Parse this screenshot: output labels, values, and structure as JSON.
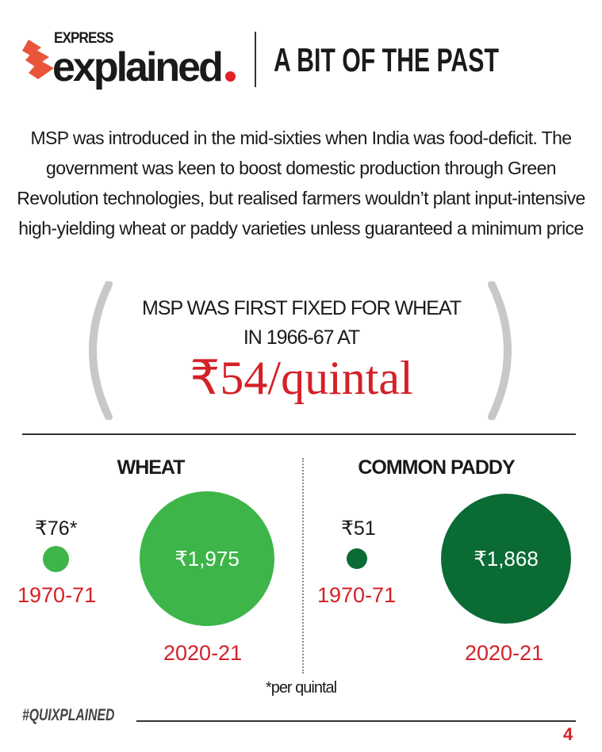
{
  "header": {
    "logo_top": "EXPRESS",
    "logo_main": "explained",
    "title": "A BIT OF THE PAST"
  },
  "intro": "MSP was introduced in the mid-sixties when India was food-deficit. The government was keen to boost domestic production through Green Revolution technologies, but realised farmers wouldn’t plant input-intensive high-yielding wheat or paddy varieties unless guaranteed a minimum price",
  "highlight": {
    "line1": "MSP WAS FIRST FIXED FOR WHEAT",
    "line2": "IN 1966-67 AT",
    "price": "₹54/quintal"
  },
  "wheat": {
    "heading": "WHEAT",
    "old_value": "₹76*",
    "old_year": "1970-71",
    "new_value": "₹1,975",
    "new_year": "2020-21",
    "color": "#3db549"
  },
  "paddy": {
    "heading": "COMMON PADDY",
    "old_value": "₹51",
    "old_year": "1970-71",
    "new_value": "₹1,868",
    "new_year": "2020-21",
    "color": "#0b6b35"
  },
  "footnote": "*per quintal",
  "footer": {
    "hashtag": "#QUIXPLAINED",
    "page_number": "4"
  },
  "colors": {
    "accent_red": "#d42127",
    "logo_orange": "#e8553a"
  }
}
